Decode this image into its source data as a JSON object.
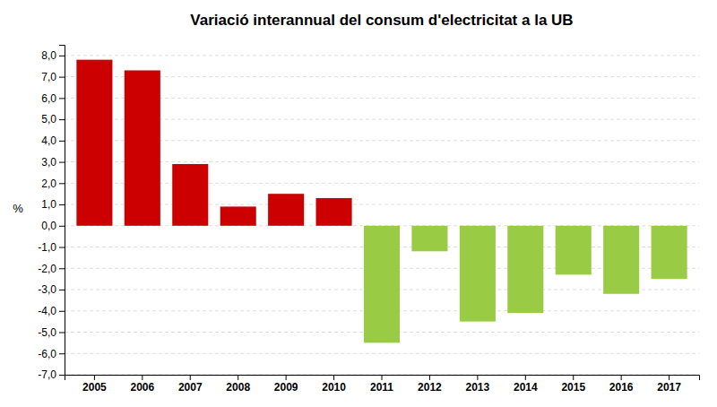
{
  "chart_data": {
    "type": "bar",
    "title": "Variació interannual del consum d'electricitat a la UB",
    "categories": [
      "2005",
      "2006",
      "2007",
      "2008",
      "2009",
      "2010",
      "2011",
      "2012",
      "2013",
      "2014",
      "2015",
      "2016",
      "2017"
    ],
    "values": [
      7.8,
      7.3,
      2.9,
      0.9,
      1.5,
      1.3,
      -5.5,
      -1.2,
      -4.5,
      -4.1,
      -2.3,
      -3.2,
      -2.5
    ],
    "colors": [
      "#cc0000",
      "#cc0000",
      "#cc0000",
      "#cc0000",
      "#cc0000",
      "#cc0000",
      "#99cc44",
      "#99cc44",
      "#99cc44",
      "#99cc44",
      "#99cc44",
      "#99cc44",
      "#99cc44"
    ],
    "ylabel": "%",
    "ylim": [
      -7.0,
      8.5
    ],
    "yticks": [
      {
        "value": -7.0,
        "label": "-7,0"
      },
      {
        "value": -6.0,
        "label": "-6,0"
      },
      {
        "value": -5.0,
        "label": "-5,0"
      },
      {
        "value": -4.0,
        "label": "-4,0"
      },
      {
        "value": -3.0,
        "label": "-3,0"
      },
      {
        "value": -2.0,
        "label": "-2,0"
      },
      {
        "value": -1.0,
        "label": "-1,0"
      },
      {
        "value": 0.0,
        "label": "0,0"
      },
      {
        "value": 1.0,
        "label": "1,0"
      },
      {
        "value": 2.0,
        "label": "2,0"
      },
      {
        "value": 3.0,
        "label": "3,0"
      },
      {
        "value": 4.0,
        "label": "4,0"
      },
      {
        "value": 5.0,
        "label": "5,0"
      },
      {
        "value": 6.0,
        "label": "6,0"
      },
      {
        "value": 7.0,
        "label": "7,0"
      },
      {
        "value": 8.0,
        "label": "8,0"
      }
    ],
    "grid": true
  }
}
